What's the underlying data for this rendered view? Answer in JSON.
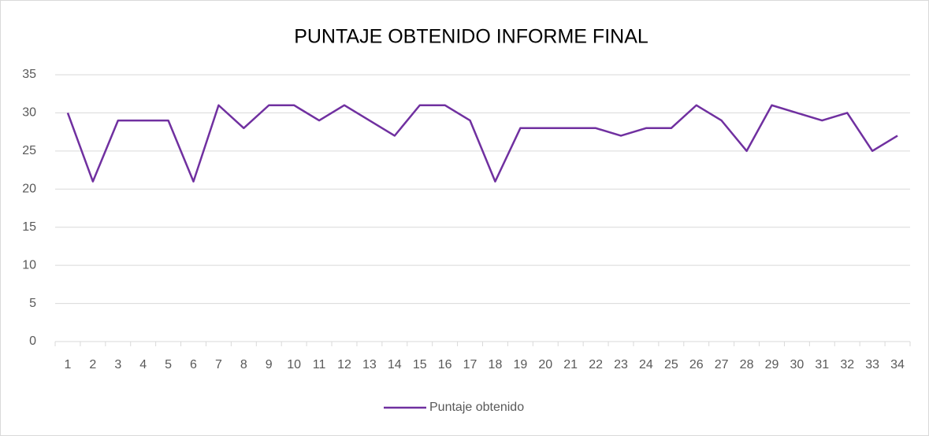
{
  "chart_data": {
    "type": "line",
    "title": "PUNTAJE OBTENIDO INFORME FINAL",
    "categories": [
      "1",
      "2",
      "3",
      "4",
      "5",
      "6",
      "7",
      "8",
      "9",
      "10",
      "11",
      "12",
      "13",
      "14",
      "15",
      "16",
      "17",
      "18",
      "19",
      "20",
      "21",
      "22",
      "23",
      "24",
      "25",
      "26",
      "27",
      "28",
      "29",
      "30",
      "31",
      "32",
      "33",
      "34"
    ],
    "series": [
      {
        "name": "Puntaje obtenido",
        "color": "#7030a0",
        "values": [
          30,
          21,
          29,
          29,
          29,
          21,
          31,
          28,
          31,
          31,
          29,
          31,
          29,
          27,
          31,
          31,
          29,
          21,
          28,
          28,
          28,
          28,
          27,
          28,
          28,
          31,
          29,
          25,
          31,
          30,
          29,
          30,
          25,
          27
        ]
      }
    ],
    "ylim": [
      0,
      35
    ],
    "yticks": [
      0,
      5,
      10,
      15,
      20,
      25,
      30,
      35
    ],
    "grid": true,
    "legend": "bottom"
  }
}
